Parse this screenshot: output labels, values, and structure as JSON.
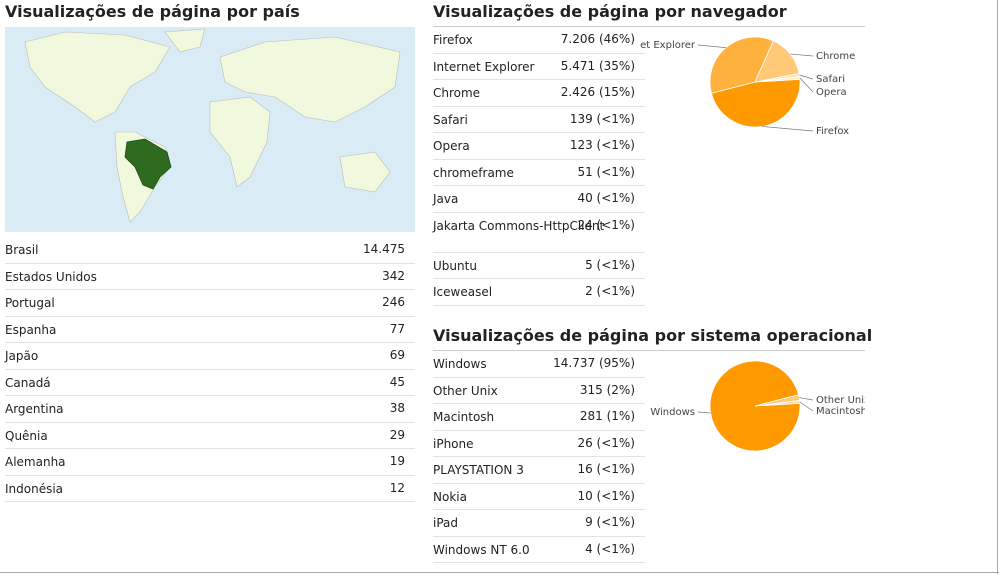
{
  "countries": {
    "title": "Visualizações de página por país",
    "rows": [
      {
        "name": "Brasil",
        "value": "14.475"
      },
      {
        "name": "Estados Unidos",
        "value": "342"
      },
      {
        "name": "Portugal",
        "value": "246"
      },
      {
        "name": "Espanha",
        "value": "77"
      },
      {
        "name": "Japão",
        "value": "69"
      },
      {
        "name": "Canadá",
        "value": "45"
      },
      {
        "name": "Argentina",
        "value": "38"
      },
      {
        "name": "Quênia",
        "value": "29"
      },
      {
        "name": "Alemanha",
        "value": "19"
      },
      {
        "name": "Indonésia",
        "value": "12"
      }
    ]
  },
  "browsers": {
    "title": "Visualizações de página por navegador",
    "rows": [
      {
        "name": "Firefox",
        "value": "7.206 (46%)"
      },
      {
        "name": "Internet Explorer",
        "value": "5.471 (35%)"
      },
      {
        "name": "Chrome",
        "value": "2.426 (15%)"
      },
      {
        "name": "Safari",
        "value": "139 (<1%)"
      },
      {
        "name": "Opera",
        "value": "123 (<1%)"
      },
      {
        "name": "chromeframe",
        "value": "51 (<1%)"
      },
      {
        "name": "Java",
        "value": "40 (<1%)"
      },
      {
        "name": "Jakarta Commons-HttpClient",
        "value": "24 (<1%)"
      },
      {
        "name": "Ubuntu",
        "value": "5 (<1%)"
      },
      {
        "name": "Iceweasel",
        "value": "2 (<1%)"
      }
    ],
    "pie": {
      "labels": [
        "Firefox",
        "et Explorer",
        "Chrome",
        "Safari",
        "Opera"
      ],
      "values": [
        46,
        35,
        15,
        1,
        1
      ],
      "colors": [
        "#ff9900",
        "#ffb13d",
        "#ffc978",
        "#ffdca8",
        "#ffedd1"
      ]
    }
  },
  "os": {
    "title": "Visualizações de página por sistema operacional",
    "rows": [
      {
        "name": "Windows",
        "value": "14.737 (95%)"
      },
      {
        "name": "Other Unix",
        "value": "315 (2%)"
      },
      {
        "name": "Macintosh",
        "value": "281 (1%)"
      },
      {
        "name": "iPhone",
        "value": "26 (<1%)"
      },
      {
        "name": "PLAYSTATION 3",
        "value": "16 (<1%)"
      },
      {
        "name": "Nokia",
        "value": "10 (<1%)"
      },
      {
        "name": "iPad",
        "value": "9 (<1%)"
      },
      {
        "name": "Windows NT 6.0",
        "value": "4 (<1%)"
      }
    ],
    "pie": {
      "labels": [
        "Windows",
        "Other Unix",
        "Macintosh"
      ],
      "values": [
        95,
        2,
        1
      ],
      "colors": [
        "#ff9900",
        "#ffc978",
        "#ffdca8"
      ]
    }
  }
}
